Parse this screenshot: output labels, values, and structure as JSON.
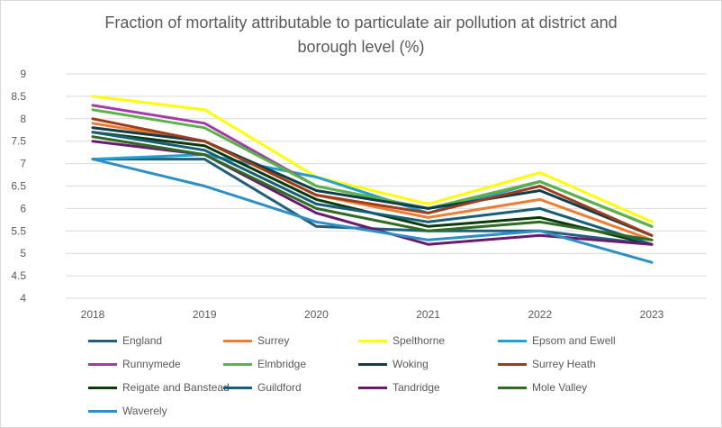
{
  "chart_data": {
    "type": "line",
    "title": "Fraction of mortality attributable to particulate air pollution at district and borough level (%)",
    "title_lines": [
      "Fraction of mortality attributable to particulate air pollution at district and",
      "borough level (%)"
    ],
    "xlabel": "",
    "ylabel": "",
    "x": [
      "2018",
      "2019",
      "2020",
      "2021",
      "2022",
      "2023"
    ],
    "ylim": [
      4,
      9
    ],
    "yticks": [
      "4",
      "4.5",
      "5",
      "5.5",
      "6",
      "6.5",
      "7",
      "7.5",
      "8",
      "8.5",
      "9"
    ],
    "grid": "horizontal",
    "legend_position": "bottom",
    "series": [
      {
        "name": "England",
        "color": "#1f5f7a",
        "values": [
          7.1,
          7.1,
          5.6,
          5.5,
          5.5,
          5.2
        ]
      },
      {
        "name": "Surrey",
        "color": "#ed7d31",
        "values": [
          7.9,
          7.5,
          6.3,
          5.8,
          6.2,
          5.3
        ]
      },
      {
        "name": "Spelthorne",
        "color": "#ffff00",
        "values": [
          8.5,
          8.2,
          6.7,
          6.1,
          6.8,
          5.7
        ]
      },
      {
        "name": "Epsom and Ewell",
        "color": "#21a0d2",
        "values": [
          7.1,
          7.2,
          6.7,
          5.9,
          6.6,
          5.6
        ]
      },
      {
        "name": "Runnymede",
        "color": "#a33ca8",
        "values": [
          8.3,
          7.9,
          6.5,
          6.0,
          6.6,
          5.6
        ]
      },
      {
        "name": "Elmbridge",
        "color": "#5ab446",
        "values": [
          8.2,
          7.8,
          6.5,
          6.0,
          6.6,
          5.6
        ]
      },
      {
        "name": "Woking",
        "color": "#0f3d4a",
        "values": [
          7.8,
          7.5,
          6.4,
          6.0,
          6.4,
          5.4
        ]
      },
      {
        "name": "Surrey Heath",
        "color": "#9e3d1b",
        "values": [
          8.0,
          7.5,
          6.3,
          5.9,
          6.5,
          5.4
        ]
      },
      {
        "name": "Reigate and Banstead",
        "color": "#0b3a0b",
        "values": [
          7.7,
          7.4,
          6.2,
          5.6,
          5.8,
          5.2
        ]
      },
      {
        "name": "Guildford",
        "color": "#165e7a",
        "values": [
          7.7,
          7.3,
          6.1,
          5.7,
          6.0,
          5.2
        ]
      },
      {
        "name": "Tandridge",
        "color": "#6a1b6e",
        "values": [
          7.5,
          7.2,
          5.9,
          5.2,
          5.4,
          5.2
        ]
      },
      {
        "name": "Mole Valley",
        "color": "#2f6b23",
        "values": [
          7.6,
          7.2,
          6.0,
          5.5,
          5.7,
          5.3
        ]
      },
      {
        "name": "Waverely",
        "color": "#2e8fc4",
        "values": [
          7.1,
          6.5,
          5.7,
          5.3,
          5.5,
          4.8
        ]
      }
    ]
  }
}
